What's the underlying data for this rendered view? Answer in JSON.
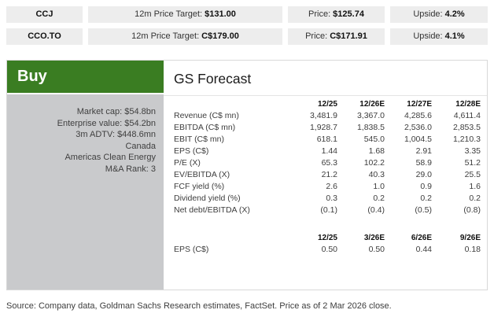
{
  "tickers": [
    {
      "symbol": "CCJ",
      "target_label": "12m Price Target:",
      "target_value": "$131.00",
      "price_label": "Price:",
      "price_value": "$125.74",
      "upside_label": "Upside:",
      "upside_value": "4.2%"
    },
    {
      "symbol": "CCO.TO",
      "target_label": "12m Price Target:",
      "target_value": "C$179.00",
      "price_label": "Price:",
      "price_value": "C$171.91",
      "upside_label": "Upside:",
      "upside_value": "4.1%"
    }
  ],
  "rating": {
    "label": "Buy"
  },
  "company_info": [
    "Market cap: $54.8bn",
    "Enterprise value: $54.2bn",
    "3m ADTV: $448.6mn",
    "Canada",
    "Americas Clean Energy",
    "M&A Rank: 3"
  ],
  "forecast": {
    "title": "GS Forecast",
    "annual": {
      "columns": [
        "12/25",
        "12/26E",
        "12/27E",
        "12/28E"
      ],
      "rows": [
        {
          "label": "Revenue (C$ mn)",
          "values": [
            "3,481.9",
            "3,367.0",
            "4,285.6",
            "4,611.4"
          ]
        },
        {
          "label": "EBITDA (C$ mn)",
          "values": [
            "1,928.7",
            "1,838.5",
            "2,536.0",
            "2,853.5"
          ]
        },
        {
          "label": "EBIT (C$ mn)",
          "values": [
            "618.1",
            "545.0",
            "1,004.5",
            "1,210.3"
          ]
        },
        {
          "label": "EPS (C$)",
          "values": [
            "1.44",
            "1.68",
            "2.91",
            "3.35"
          ]
        },
        {
          "label": "P/E (X)",
          "values": [
            "65.3",
            "102.2",
            "58.9",
            "51.2"
          ]
        },
        {
          "label": "EV/EBITDA (X)",
          "values": [
            "21.2",
            "40.3",
            "29.0",
            "25.5"
          ]
        },
        {
          "label": "FCF yield (%)",
          "values": [
            "2.6",
            "1.0",
            "0.9",
            "1.6"
          ]
        },
        {
          "label": "Dividend yield (%)",
          "values": [
            "0.3",
            "0.2",
            "0.2",
            "0.2"
          ]
        },
        {
          "label": "Net debt/EBITDA (X)",
          "values": [
            "(0.1)",
            "(0.4)",
            "(0.5)",
            "(0.8)"
          ]
        }
      ]
    },
    "quarterly": {
      "columns": [
        "12/25",
        "3/26E",
        "6/26E",
        "9/26E"
      ],
      "rows": [
        {
          "label": "EPS (C$)",
          "values": [
            "0.50",
            "0.50",
            "0.44",
            "0.18"
          ]
        }
      ]
    }
  },
  "source": "Source: Company data, Goldman Sachs Research estimates, FactSet. Price as of 2 Mar 2026 close.",
  "colors": {
    "rating_green": "#3a7d22",
    "panel_gray": "#c9cacc",
    "cell_gray": "#ededed"
  }
}
